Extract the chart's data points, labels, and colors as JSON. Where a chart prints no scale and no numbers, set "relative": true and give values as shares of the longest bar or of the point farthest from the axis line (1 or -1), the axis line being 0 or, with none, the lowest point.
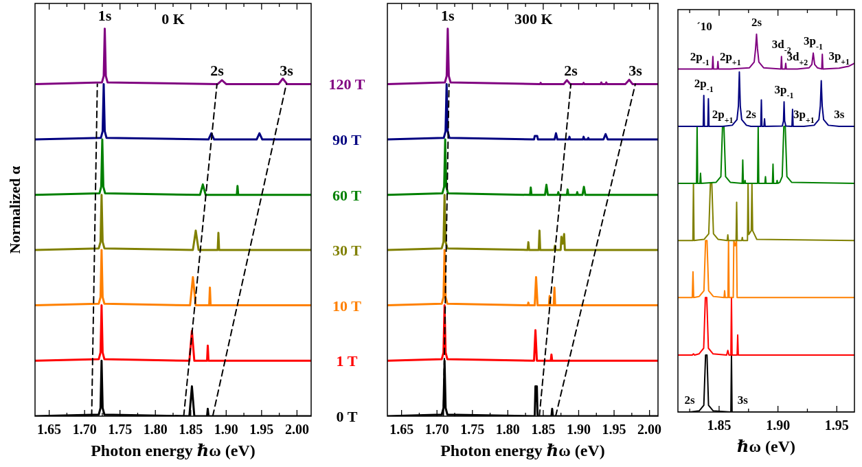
{
  "chart_data": [
    {
      "type": "line",
      "relative": true,
      "xlabel": "Photon energy ℏω (eV)",
      "ylabel": "Normalized α",
      "legend": false,
      "grid": false,
      "xlim": [
        1.63,
        2.02
      ],
      "xticks": [
        1.65,
        {
          "value": 1.675,
          "label": null
        },
        {
          "value": 1.7,
          "label": "1.70"
        },
        {
          "value": 1.725,
          "label": null
        },
        1.75,
        {
          "value": 1.775,
          "label": null
        },
        {
          "value": 1.8,
          "label": "1.80"
        },
        {
          "value": 1.825,
          "label": null
        },
        1.85,
        {
          "value": 1.875,
          "label": null
        },
        {
          "value": 1.9,
          "label": "1.90"
        },
        {
          "value": 1.925,
          "label": null
        },
        1.95,
        {
          "value": 1.975,
          "label": null
        },
        {
          "value": 2.0,
          "label": "2.00"
        }
      ],
      "annotations": [
        {
          "text": "1s",
          "x": 1.7285,
          "y": 1
        },
        "0 K",
        {
          "text": "2s",
          "x": 1.887,
          "y": 0.857
        },
        {
          "text": "3s",
          "x": 1.985,
          "y": 0.857
        }
      ],
      "series": [
        {
          "name": "0 T",
          "color": "#000000",
          "x": [
            1.63,
            1.72,
            1.7225,
            1.724,
            1.7255,
            1.728,
            1.848,
            1.8516,
            1.855,
            1.873,
            1.874,
            1.875,
            2.02
          ],
          "values": [
            0,
            0.004,
            0.021,
            0.143,
            0.021,
            0.004,
            0,
            0.077,
            0,
            0,
            0.019,
            0,
            0
          ]
        },
        {
          "name": "1 T",
          "color": "#ff0000",
          "x": [
            1.63,
            1.72,
            1.7225,
            1.724,
            1.7255,
            1.728,
            1.848,
            1.8516,
            1.855,
            1.873,
            1.874,
            1.875,
            2.02
          ],
          "values": [
            0.143,
            0.147,
            0.164,
            0.286,
            0.164,
            0.147,
            0.143,
            0.22,
            0.143,
            0.143,
            0.182,
            0.143,
            0.143
          ]
        },
        {
          "name": "10 T",
          "color": "#ff8000",
          "x": [
            1.63,
            1.72,
            1.7225,
            1.724,
            1.7255,
            1.728,
            1.849,
            1.853,
            1.857,
            1.876,
            1.877,
            1.878,
            2.02
          ],
          "values": [
            0.286,
            0.29,
            0.307,
            0.429,
            0.307,
            0.29,
            0.286,
            0.359,
            0.286,
            0.286,
            0.332,
            0.286,
            0.286
          ]
        },
        {
          "name": "30 T",
          "color": "#808000",
          "x": [
            1.63,
            1.72,
            1.7225,
            1.724,
            1.7255,
            1.728,
            1.853,
            1.857,
            1.861,
            1.888,
            1.889,
            1.89,
            2.02
          ],
          "values": [
            0.429,
            0.433,
            0.45,
            0.571,
            0.45,
            0.433,
            0.429,
            0.479,
            0.429,
            0.429,
            0.473,
            0.429,
            0.429
          ]
        },
        {
          "name": "60 T",
          "color": "#008000",
          "x": [
            1.63,
            1.721,
            1.7235,
            1.725,
            1.7265,
            1.729,
            1.863,
            1.867,
            1.871,
            1.915,
            1.916,
            1.917,
            2.02
          ],
          "values": [
            0.571,
            0.575,
            0.592,
            0.714,
            0.592,
            0.575,
            0.571,
            0.598,
            0.571,
            0.571,
            0.594,
            0.571,
            0.571
          ]
        },
        {
          "name": "90 T",
          "color": "#000080",
          "x": [
            1.63,
            1.723,
            1.7255,
            1.727,
            1.7285,
            1.731,
            1.875,
            1.879,
            1.883,
            1.943,
            1.947,
            1.951,
            2.02
          ],
          "values": [
            0.714,
            0.718,
            0.735,
            0.857,
            0.735,
            0.718,
            0.714,
            0.73,
            0.714,
            0.714,
            0.73,
            0.714,
            0.714
          ]
        },
        {
          "name": "120 T",
          "color": "#800080",
          "x": [
            1.63,
            1.7245,
            1.727,
            1.7285,
            1.73,
            1.7325,
            1.888,
            1.894,
            1.9,
            1.974,
            1.98,
            1.986,
            2.02
          ],
          "values": [
            0.857,
            0.861,
            0.878,
            1,
            0.878,
            0.861,
            0.857,
            0.867,
            0.857,
            0.857,
            0.871,
            0.857,
            0.857
          ]
        },
        {
          "type": "line",
          "line_style": "dashed",
          "color": "#000000",
          "x": [
            1.71,
            1.718
          ],
          "values": [
            0,
            0.857
          ]
        },
        {
          "type": "line",
          "line_style": "dashed",
          "color": "#000000",
          "x": [
            1.84,
            1.887
          ],
          "values": [
            0,
            0.857
          ]
        },
        {
          "type": "line",
          "line_style": "dashed",
          "color": "#000000",
          "x": [
            1.881,
            1.985
          ],
          "values": [
            0,
            0.857
          ]
        }
      ]
    },
    {
      "type": "line",
      "relative": true,
      "xlabel": "Photon energy ℏω (eV)",
      "legend": false,
      "grid": false,
      "xlim": [
        1.63,
        2.012
      ],
      "xticks": [
        1.65,
        {
          "value": 1.675,
          "label": null
        },
        {
          "value": 1.7,
          "label": "1.70"
        },
        {
          "value": 1.725,
          "label": null
        },
        1.75,
        {
          "value": 1.775,
          "label": null
        },
        {
          "value": 1.8,
          "label": "1.80"
        },
        {
          "value": 1.825,
          "label": null
        },
        1.85,
        {
          "value": 1.875,
          "label": null
        },
        {
          "value": 1.9,
          "label": "1.90"
        },
        {
          "value": 1.925,
          "label": null
        },
        1.95,
        {
          "value": 1.975,
          "label": null
        },
        {
          "value": 2.0,
          "label": "2.00"
        }
      ],
      "annotations": [
        {
          "text": "1s",
          "x": 1.7152,
          "y": 1
        },
        "300 K",
        {
          "text": "2s",
          "x": 1.889,
          "y": 0.857
        },
        {
          "text": "3s",
          "x": 1.98,
          "y": 0.857
        }
      ],
      "series": [
        {
          "color": "#000000",
          "x": [
            1.63,
            1.7067,
            1.7092,
            1.7107,
            1.7122,
            1.7147,
            1.838,
            1.839,
            1.84,
            1.841,
            1.842,
            1.8616,
            1.8626,
            1.8636,
            2.012
          ],
          "values": [
            0,
            0.004,
            0.021,
            0.143,
            0.021,
            0.004,
            0,
            0.077,
            0.04,
            0.077,
            0,
            0,
            0.019,
            0,
            0
          ]
        },
        {
          "color": "#ff0000",
          "x": [
            1.63,
            1.7067,
            1.7092,
            1.7107,
            1.7122,
            1.7147,
            1.837,
            1.839,
            1.841,
            1.8606,
            1.8616,
            1.8626,
            2.012
          ],
          "values": [
            0.143,
            0.147,
            0.164,
            0.286,
            0.164,
            0.147,
            0.143,
            0.222,
            0.143,
            0.143,
            0.159,
            0.143,
            0.143
          ]
        },
        {
          "color": "#ff8000",
          "x": [
            1.63,
            1.7067,
            1.7092,
            1.7107,
            1.7122,
            1.7147,
            1.828,
            1.829,
            1.83,
            1.838,
            1.8399,
            1.842,
            1.858,
            1.859,
            1.86,
            1.8648,
            1.8658,
            1.8668,
            2.012
          ],
          "values": [
            0.286,
            0.29,
            0.307,
            0.429,
            0.307,
            0.29,
            0.286,
            0.293,
            0.286,
            0.286,
            0.359,
            0.286,
            0.286,
            0.31,
            0.286,
            0.286,
            0.332,
            0.286,
            0.286
          ]
        },
        {
          "color": "#808000",
          "x": [
            1.63,
            1.7067,
            1.7092,
            1.7107,
            1.7122,
            1.7147,
            1.828,
            1.829,
            1.83,
            1.8437,
            1.8447,
            1.8457,
            1.8655,
            1.8665,
            1.8675,
            1.8746,
            1.8756,
            1.8775,
            1.8795,
            1.8805,
            2.012
          ],
          "values": [
            0.429,
            0.433,
            0.45,
            0.571,
            0.45,
            0.433,
            0.429,
            0.449,
            0.429,
            0.429,
            0.479,
            0.429,
            0.429,
            0.44,
            0.429,
            0.429,
            0.463,
            0.445,
            0.47,
            0.429,
            0.429
          ]
        },
        {
          "color": "#008000",
          "x": [
            1.63,
            1.7076,
            1.7101,
            1.7116,
            1.7131,
            1.7156,
            1.8314,
            1.8324,
            1.8334,
            1.8525,
            1.8545,
            1.8565,
            1.8703,
            1.8713,
            1.8723,
            1.8834,
            1.8844,
            1.8854,
            1.897,
            1.898,
            1.899,
            1.9054,
            1.9074,
            1.9094,
            2.012
          ],
          "values": [
            0.571,
            0.575,
            0.592,
            0.714,
            0.592,
            0.575,
            0.571,
            0.59,
            0.571,
            0.571,
            0.597,
            0.571,
            0.571,
            0.578,
            0.571,
            0.571,
            0.585,
            0.571,
            0.571,
            0.578,
            0.571,
            0.571,
            0.592,
            0.571,
            0.571
          ]
        },
        {
          "color": "#000080",
          "x": [
            1.63,
            1.7096,
            1.7121,
            1.7136,
            1.7151,
            1.7176,
            1.837,
            1.838,
            1.8415,
            1.8425,
            1.866,
            1.868,
            1.87,
            1.886,
            1.887,
            1.888,
            1.906,
            1.907,
            1.908,
            1.9126,
            1.9136,
            1.9146,
            1.935,
            1.938,
            1.941,
            2.012
          ],
          "values": [
            0.714,
            0.718,
            0.735,
            0.857,
            0.735,
            0.718,
            0.714,
            0.723,
            0.723,
            0.714,
            0.714,
            0.73,
            0.714,
            0.714,
            0.721,
            0.714,
            0.714,
            0.721,
            0.714,
            0.714,
            0.718,
            0.714,
            0.714,
            0.728,
            0.714,
            0.714
          ]
        },
        {
          "color": "#800080",
          "x": [
            1.63,
            1.7112,
            1.7137,
            1.7152,
            1.7167,
            1.7192,
            1.8454,
            1.8464,
            1.8474,
            1.879,
            1.8834,
            1.888,
            1.906,
            1.907,
            1.908,
            1.931,
            1.932,
            1.933,
            1.938,
            1.939,
            1.94,
            1.966,
            1.9713,
            1.976,
            2.012
          ],
          "values": [
            0.857,
            0.861,
            0.878,
            1,
            0.878,
            0.861,
            0.857,
            0.86,
            0.857,
            0.857,
            0.867,
            0.857,
            0.857,
            0.86,
            0.857,
            0.857,
            0.861,
            0.857,
            0.857,
            0.861,
            0.857,
            0.857,
            0.868,
            0.857,
            0.857
          ]
        },
        {
          "type": "line",
          "line_style": "dashed",
          "color": "#000000",
          "x": [
            1.709,
            1.717
          ],
          "values": [
            0,
            0.857
          ]
        },
        {
          "type": "line",
          "line_style": "dashed",
          "color": "#000000",
          "x": [
            1.8445,
            1.889
          ],
          "values": [
            0,
            0.857
          ]
        },
        {
          "type": "line",
          "line_style": "dashed",
          "color": "#000000",
          "x": [
            1.8675,
            1.98
          ],
          "values": [
            0,
            0.857
          ]
        }
      ]
    },
    {
      "type": "line",
      "relative": true,
      "xlabel": "ℏω (eV)",
      "legend": false,
      "grid": false,
      "xlim": [
        1.815,
        1.965
      ],
      "xticks": [
        {
          "value": 1.825,
          "label": null
        },
        1.85,
        {
          "value": 1.875,
          "label": null
        },
        {
          "value": 1.9,
          "label": "1.90"
        },
        {
          "value": 1.925,
          "label": null
        },
        1.95
      ],
      "annotations": [
        "´10",
        {
          "text": "2s",
          "x": 1.8818,
          "y": 1
        },
        {
          "text": "2p$_{-1}$",
          "x": 1.8335,
          "y": 0.908
        },
        {
          "text": "2p$_{+1}$",
          "x": 1.8595,
          "y": 0.908
        },
        {
          "text": "3d$_{-2}$",
          "x": 1.903,
          "y": 0.941
        },
        {
          "text": "3d$_{+2}$",
          "x": 1.9165,
          "y": 0.908
        },
        {
          "text": "3p$_{-1}$",
          "x": 1.93,
          "y": 0.95
        },
        {
          "text": "3p$_{+1}$",
          "x": 1.952,
          "y": 0.91
        },
        {
          "text": "2p$_{-1}$",
          "x": 1.837,
          "y": 0.838
        },
        {
          "text": "2p$_{+1}$",
          "x": 1.853,
          "y": 0.756
        },
        {
          "text": "2s",
          "x": 1.877,
          "y": 0.756
        },
        {
          "text": "3p$_{-1}$",
          "x": 1.9052,
          "y": 0.821
        },
        {
          "text": "3p$_{+1}$",
          "x": 1.922,
          "y": 0.756
        },
        {
          "text": "3s",
          "x": 1.952,
          "y": 0.756
        },
        {
          "text": "2s",
          "x": 1.825,
          "y": 0
        },
        {
          "text": "3s",
          "x": 1.87,
          "y": 0
        }
      ],
      "series": [
        {
          "color": "#000000",
          "x": [
            1.815,
            1.825,
            1.833,
            1.837,
            1.8385,
            1.8397,
            1.841,
            1.845,
            1.86,
            1.8605,
            1.861,
            1.87,
            1.965
          ],
          "values": [
            0,
            0,
            0.003,
            0.018,
            0.151,
            0.151,
            0.018,
            0.003,
            0,
            0.151,
            0,
            0,
            0
          ]
        },
        {
          "color": "#ff0000",
          "x": [
            1.815,
            1.8272,
            1.8282,
            1.8292,
            1.8329,
            1.8369,
            1.8383,
            1.8395,
            1.8409,
            1.8449,
            1.8564,
            1.8574,
            1.8584,
            1.86,
            1.8605,
            1.861,
            1.8653,
            1.8658,
            1.8663,
            1.965
          ],
          "values": [
            0.151,
            0.151,
            0.154,
            0.151,
            0.154,
            0.169,
            0.303,
            0.303,
            0.169,
            0.154,
            0.151,
            0.163,
            0.151,
            0.151,
            0.303,
            0.151,
            0.151,
            0.204,
            0.151,
            0.151
          ]
        },
        {
          "color": "#ff8000",
          "x": [
            1.815,
            1.8272,
            1.8278,
            1.8284,
            1.8331,
            1.8371,
            1.8385,
            1.8397,
            1.8411,
            1.8451,
            1.8542,
            1.8547,
            1.8552,
            1.8575,
            1.858,
            1.8585,
            1.862,
            1.8625,
            1.8636,
            1.8648,
            1.8653,
            1.965
          ],
          "values": [
            0.303,
            0.303,
            0.371,
            0.303,
            0.306,
            0.321,
            0.454,
            0.454,
            0.321,
            0.306,
            0.303,
            0.321,
            0.303,
            0.303,
            0.454,
            0.303,
            0.303,
            0.454,
            0.44,
            0.454,
            0.303,
            0.303
          ]
        },
        {
          "color": "#808000",
          "x": [
            1.815,
            1.8277,
            1.8282,
            1.8287,
            1.8372,
            1.8412,
            1.8426,
            1.8438,
            1.8452,
            1.8492,
            1.8569,
            1.8574,
            1.8579,
            1.8644,
            1.8649,
            1.8654,
            1.8692,
            1.8697,
            1.8702,
            1.8741,
            1.8746,
            1.8752,
            1.8773,
            1.8779,
            1.8785,
            1.882,
            1.965
          ],
          "values": [
            0.454,
            0.454,
            0.605,
            0.454,
            0.457,
            0.472,
            0.605,
            0.605,
            0.472,
            0.457,
            0.454,
            0.469,
            0.454,
            0.454,
            0.555,
            0.454,
            0.454,
            0.462,
            0.454,
            0.454,
            0.605,
            0.47,
            0.48,
            0.605,
            0.48,
            0.457,
            0.454
          ]
        },
        {
          "color": "#008000",
          "x": [
            1.815,
            1.8308,
            1.8313,
            1.8318,
            1.8337,
            1.8342,
            1.8347,
            1.8475,
            1.8515,
            1.8529,
            1.8541,
            1.8555,
            1.8595,
            1.8696,
            1.8701,
            1.8706,
            1.8715,
            1.872,
            1.8725,
            1.8827,
            1.8832,
            1.8837,
            1.8889,
            1.8894,
            1.8899,
            1.8953,
            1.8958,
            1.8963,
            1.8988,
            1.8993,
            1.8998,
            1.9016,
            1.9036,
            1.905,
            1.9062,
            1.9076,
            1.9116,
            1.965
          ],
          "values": [
            0.605,
            0.605,
            0.756,
            0.605,
            0.605,
            0.632,
            0.605,
            0.608,
            0.623,
            0.756,
            0.756,
            0.623,
            0.608,
            0.605,
            0.667,
            0.605,
            0.605,
            0.613,
            0.605,
            0.605,
            0.756,
            0.605,
            0.605,
            0.623,
            0.605,
            0.605,
            0.656,
            0.605,
            0.605,
            0.613,
            0.605,
            0.608,
            0.623,
            0.756,
            0.756,
            0.623,
            0.608,
            0.605
          ]
        },
        {
          "color": "#000080",
          "x": [
            1.815,
            1.826,
            1.8365,
            1.837,
            1.8375,
            1.8404,
            1.8409,
            1.8414,
            1.853,
            1.8612,
            1.8652,
            1.8664,
            1.8672,
            1.868,
            1.8692,
            1.8732,
            1.877,
            1.8854,
            1.8859,
            1.8864,
            1.8881,
            1.8886,
            1.8891,
            1.9037,
            1.9047,
            1.9052,
            1.9057,
            1.9067,
            1.9119,
            1.9124,
            1.9129,
            1.922,
            1.9308,
            1.9348,
            1.936,
            1.9368,
            1.9376,
            1.9388,
            1.9428,
            1.952,
            1.965
          ],
          "values": [
            0.756,
            0.756,
            0.756,
            0.838,
            0.756,
            0.756,
            0.829,
            0.756,
            0.756,
            0.759,
            0.774,
            0.81,
            0.9,
            0.81,
            0.774,
            0.759,
            0.756,
            0.756,
            0.826,
            0.756,
            0.756,
            0.776,
            0.756,
            0.757,
            0.77,
            0.821,
            0.77,
            0.757,
            0.756,
            0.801,
            0.756,
            0.756,
            0.759,
            0.774,
            0.81,
            0.877,
            0.81,
            0.774,
            0.759,
            0.756,
            0.756
          ]
        },
        {
          "color": "#800080",
          "x": [
            1.815,
            1.8335,
            1.8442,
            1.8447,
            1.8452,
            1.8485,
            1.849,
            1.8495,
            1.8595,
            1.8758,
            1.8798,
            1.881,
            1.8818,
            1.8826,
            1.8838,
            1.8878,
            1.9025,
            1.903,
            1.9035,
            1.9061,
            1.9066,
            1.9071,
            1.9165,
            1.9265,
            1.9288,
            1.93,
            1.9312,
            1.9335,
            1.9372,
            1.9377,
            1.9382,
            1.952,
            1.96,
            1.965
          ],
          "values": [
            0.908,
            0.908,
            0.908,
            0.941,
            0.908,
            0.908,
            0.928,
            0.908,
            0.908,
            0.911,
            0.926,
            0.962,
            1,
            0.962,
            0.926,
            0.911,
            0.908,
            0.941,
            0.908,
            0.908,
            0.923,
            0.908,
            0.908,
            0.911,
            0.92,
            0.95,
            0.92,
            0.911,
            0.908,
            0.947,
            0.908,
            0.91,
            0.915,
            0.923
          ]
        }
      ]
    }
  ]
}
